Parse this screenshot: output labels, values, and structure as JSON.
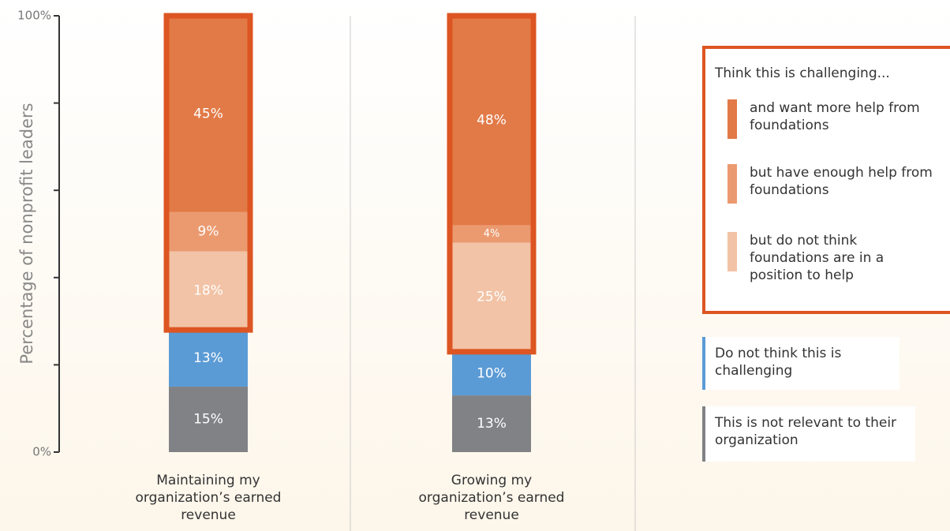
{
  "chart_data": {
    "type": "stacked_bar",
    "y_axis_label": "Percentage of nonprofit leaders",
    "categories": [
      "Maintaining my organization’s earned revenue",
      "Growing my organization’s earned revenue"
    ],
    "ylim": [
      0,
      100
    ],
    "yticks": [
      {
        "value": 0,
        "label": "0%"
      },
      {
        "value": 100,
        "label": "100%"
      }
    ],
    "minor_yticks": [
      20,
      40,
      60,
      80
    ],
    "legend_title": "Think this is challenging...",
    "series": [
      {
        "name": "This is not relevant to their organization",
        "color": "#808285",
        "values": [
          15,
          13
        ],
        "value_labels": [
          "15%",
          "13%"
        ]
      },
      {
        "name": "Do not think this is challenging",
        "color": "#5b9bd5",
        "values": [
          13,
          10
        ],
        "value_labels": [
          "13%",
          "10%"
        ]
      },
      {
        "name": "but do not think foundations are in a position to help",
        "color": "#f2c3a6",
        "values": [
          18,
          25
        ],
        "value_labels": [
          "18%",
          "25%"
        ]
      },
      {
        "name": "but have enough help from foundations",
        "color": "#eb9a70",
        "values": [
          9,
          4
        ],
        "value_labels": [
          "9%",
          "4%"
        ]
      },
      {
        "name": "and want more help from foundations",
        "color": "#e27a47",
        "values": [
          45,
          48
        ],
        "value_labels": [
          "45%",
          "48%"
        ]
      }
    ]
  }
}
